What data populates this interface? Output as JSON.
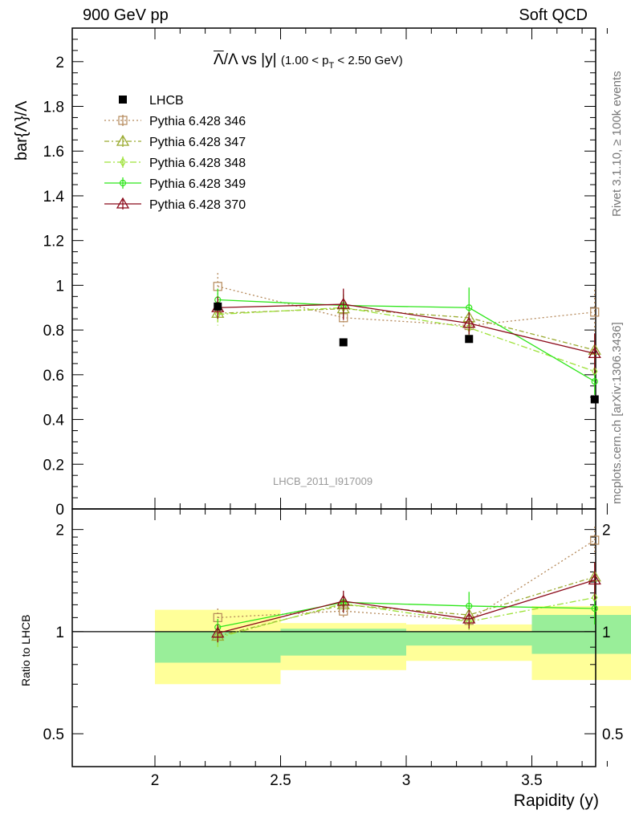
{
  "header": {
    "left": "900 GeV pp",
    "right": "Soft QCD"
  },
  "side": {
    "rivet": "Rivet 3.1.10, ≥ 100k events",
    "mcplots": "mcplots.cern.ch [arXiv:1306.3436]"
  },
  "watermark": "LHCB_2011_I917009",
  "title": {
    "main": "Λ/Λ vs |y|",
    "range": "(1.00 < p",
    "range_sub": "T",
    "range_end": " < 2.50 GeV)"
  },
  "ylabel_top": "bar{Λ}/Λ",
  "ylabel_bottom": "Ratio to LHCB",
  "xlabel": "Rapidity (y)",
  "chart_data": {
    "type": "line",
    "x": [
      2.25,
      2.75,
      3.25,
      3.75
    ],
    "x_bin_edges": [
      2.0,
      2.5,
      3.0,
      3.5,
      4.0
    ],
    "xlim": [
      2.0,
      4.0
    ],
    "ylim_top": [
      0,
      2.15
    ],
    "ylim_ratio": [
      0.4,
      2.3
    ],
    "y_ticks_top": [
      "0",
      "0.2",
      "0.4",
      "0.6",
      "0.8",
      "1",
      "1.2",
      "1.4",
      "1.6",
      "1.8",
      "2"
    ],
    "x_ticks": [
      "2",
      "2.5",
      "3",
      "3.5",
      "4"
    ],
    "ratio_ticks": [
      "0.5",
      "1",
      "2"
    ],
    "legend_position": "top-left",
    "data": {
      "name": "LHCB",
      "color": "#000000",
      "values": [
        0.905,
        0.745,
        0.76,
        0.49
      ],
      "band_inner": [
        [
          0.81,
          1.0
        ],
        [
          0.85,
          1.02
        ],
        [
          0.91,
          1.0
        ],
        [
          0.86,
          1.12
        ]
      ],
      "band_outer": [
        [
          0.7,
          1.16
        ],
        [
          0.77,
          1.06
        ],
        [
          0.82,
          1.05
        ],
        [
          0.72,
          1.19
        ]
      ]
    },
    "series": [
      {
        "name": "Pythia 6.428 346",
        "color": "#b5895a",
        "dash": "2,3",
        "marker": "square",
        "values": [
          0.995,
          0.855,
          0.82,
          0.88
        ],
        "err": [
          0.06,
          0.04,
          0.04,
          0.1
        ],
        "ratio": [
          1.1,
          1.15,
          1.08,
          1.86
        ],
        "ratio_err": [
          0.07,
          0.06,
          0.06,
          0.18
        ]
      },
      {
        "name": "Pythia 6.428 347",
        "color": "#9aaa30",
        "dash": "6,3,2,3",
        "marker": "triangle",
        "values": [
          0.875,
          0.895,
          0.855,
          0.71
        ],
        "err": [
          0.05,
          0.04,
          0.04,
          0.07
        ],
        "ratio": [
          0.97,
          1.2,
          1.12,
          1.45
        ],
        "ratio_err": [
          0.06,
          0.06,
          0.06,
          0.15
        ]
      },
      {
        "name": "Pythia 6.428 348",
        "color": "#9ee23a",
        "dash": "8,3,2,3",
        "marker": "diamond",
        "values": [
          0.87,
          0.9,
          0.81,
          0.615
        ],
        "err": [
          0.05,
          0.04,
          0.04,
          0.06
        ],
        "ratio": [
          0.96,
          1.21,
          1.07,
          1.26
        ],
        "ratio_err": [
          0.06,
          0.06,
          0.06,
          0.12
        ]
      },
      {
        "name": "Pythia 6.428 349",
        "color": "#2ee61a",
        "dash": "",
        "marker": "circle",
        "values": [
          0.935,
          0.91,
          0.9,
          0.57
        ],
        "err": [
          0.05,
          0.05,
          0.09,
          0.06
        ],
        "ratio": [
          1.03,
          1.22,
          1.19,
          1.17
        ],
        "ratio_err": [
          0.06,
          0.07,
          0.12,
          0.12
        ]
      },
      {
        "name": "Pythia 6.428 370",
        "color": "#8b0a1a",
        "dash": "",
        "marker": "triangle",
        "values": [
          0.9,
          0.915,
          0.83,
          0.695
        ],
        "err": [
          0.05,
          0.07,
          0.05,
          0.09
        ],
        "ratio": [
          0.99,
          1.23,
          1.09,
          1.42
        ],
        "ratio_err": [
          0.06,
          0.09,
          0.07,
          0.18
        ]
      }
    ]
  }
}
